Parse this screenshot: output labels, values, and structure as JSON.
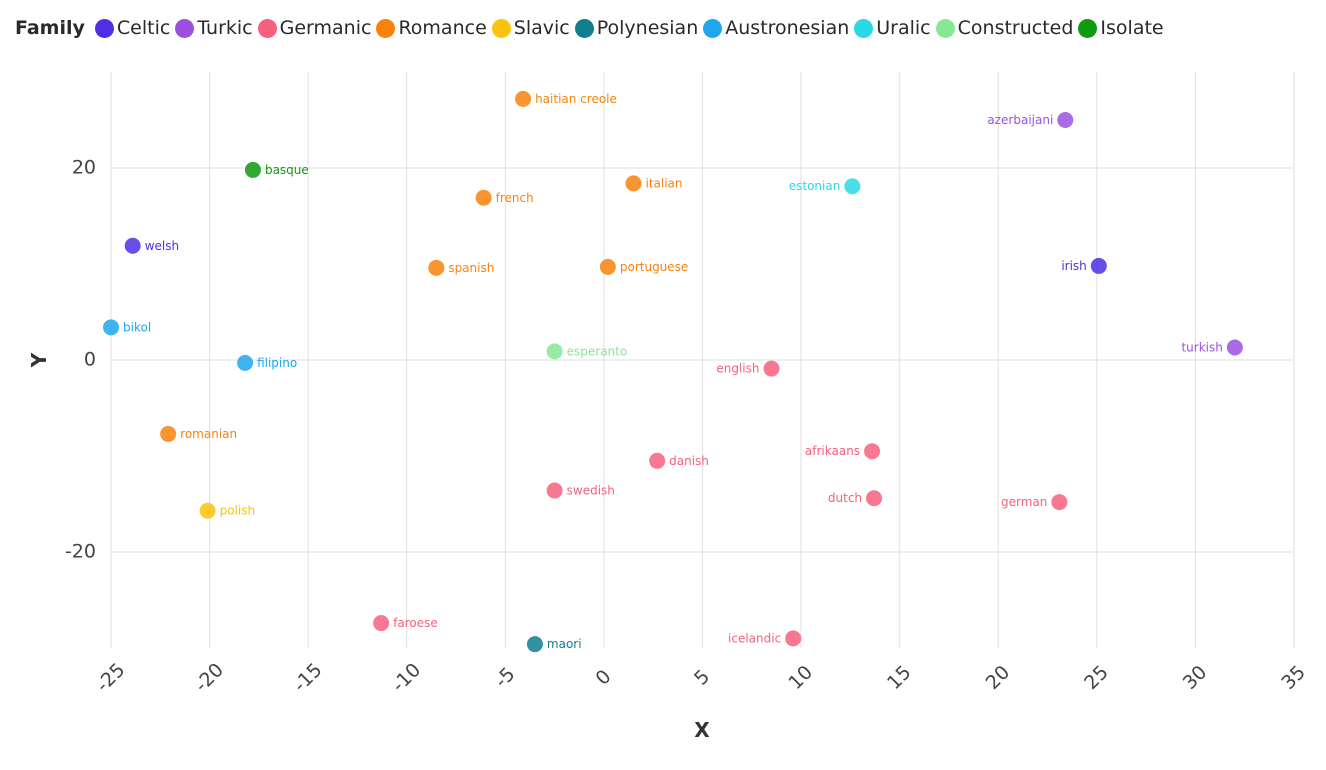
{
  "legend": {
    "title": "Family",
    "items": [
      {
        "name": "Celtic",
        "color": "#4f2ee6"
      },
      {
        "name": "Turkic",
        "color": "#9b51e0"
      },
      {
        "name": "Germanic",
        "color": "#f7607e"
      },
      {
        "name": "Romance",
        "color": "#f7830c"
      },
      {
        "name": "Slavic",
        "color": "#fbc30b"
      },
      {
        "name": "Polynesian",
        "color": "#0f7f8e"
      },
      {
        "name": "Austronesian",
        "color": "#1ea7ee"
      },
      {
        "name": "Uralic",
        "color": "#2ad9e4"
      },
      {
        "name": "Constructed",
        "color": "#86e796"
      },
      {
        "name": "Isolate",
        "color": "#0f9a0f"
      }
    ]
  },
  "chart_data": {
    "type": "scatter",
    "xlabel": "X",
    "ylabel": "Y",
    "xlim": [
      -25,
      35
    ],
    "ylim": [
      -30,
      30
    ],
    "x_ticks": [
      -25,
      -20,
      -15,
      -10,
      -5,
      0,
      5,
      10,
      15,
      20,
      25,
      30,
      35
    ],
    "y_ticks": [
      -20,
      0,
      20
    ],
    "grid": true,
    "legend_position": "top",
    "points": [
      {
        "label": "haitian creole",
        "family": "Romance",
        "x": -4.1,
        "y": 27.2
      },
      {
        "label": "azerbaijani",
        "family": "Turkic",
        "x": 23.4,
        "y": 25.0
      },
      {
        "label": "basque",
        "family": "Isolate",
        "x": -17.8,
        "y": 19.8
      },
      {
        "label": "italian",
        "family": "Romance",
        "x": 1.5,
        "y": 18.4
      },
      {
        "label": "estonian",
        "family": "Uralic",
        "x": 12.6,
        "y": 18.1
      },
      {
        "label": "french",
        "family": "Romance",
        "x": -6.1,
        "y": 16.9
      },
      {
        "label": "welsh",
        "family": "Celtic",
        "x": -23.9,
        "y": 11.9
      },
      {
        "label": "spanish",
        "family": "Romance",
        "x": -8.5,
        "y": 9.6
      },
      {
        "label": "portuguese",
        "family": "Romance",
        "x": 0.2,
        "y": 9.7
      },
      {
        "label": "irish",
        "family": "Celtic",
        "x": 25.1,
        "y": 9.8
      },
      {
        "label": "bikol",
        "family": "Austronesian",
        "x": -25.0,
        "y": 3.4
      },
      {
        "label": "turkish",
        "family": "Turkic",
        "x": 32.0,
        "y": 1.3
      },
      {
        "label": "esperanto",
        "family": "Constructed",
        "x": -2.5,
        "y": 0.9
      },
      {
        "label": "filipino",
        "family": "Austronesian",
        "x": -18.2,
        "y": -0.3
      },
      {
        "label": "english",
        "family": "Germanic",
        "x": 8.5,
        "y": -0.9
      },
      {
        "label": "romanian",
        "family": "Romance",
        "x": -22.1,
        "y": -7.7
      },
      {
        "label": "afrikaans",
        "family": "Germanic",
        "x": 13.6,
        "y": -9.5
      },
      {
        "label": "danish",
        "family": "Germanic",
        "x": 2.7,
        "y": -10.5
      },
      {
        "label": "swedish",
        "family": "Germanic",
        "x": -2.5,
        "y": -13.6
      },
      {
        "label": "dutch",
        "family": "Germanic",
        "x": 13.7,
        "y": -14.4
      },
      {
        "label": "german",
        "family": "Germanic",
        "x": 23.1,
        "y": -14.8
      },
      {
        "label": "polish",
        "family": "Slavic",
        "x": -20.1,
        "y": -15.7
      },
      {
        "label": "faroese",
        "family": "Germanic",
        "x": -11.3,
        "y": -27.4
      },
      {
        "label": "icelandic",
        "family": "Germanic",
        "x": 9.6,
        "y": -29.0
      },
      {
        "label": "maori",
        "family": "Polynesian",
        "x": -3.5,
        "y": -29.6
      }
    ]
  }
}
